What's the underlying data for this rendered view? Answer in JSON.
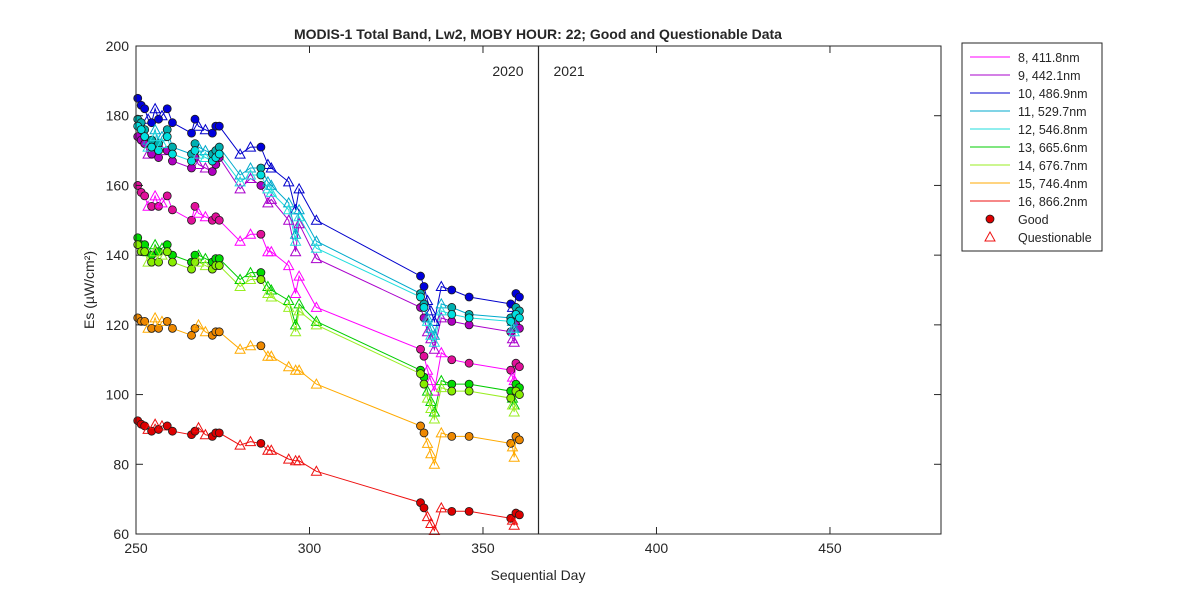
{
  "chart_data": {
    "type": "line",
    "title": "MODIS-1 Total Band,  Lw2, MOBY HOUR: 22;  Good and Questionable Data",
    "xlabel": "Sequential Day",
    "ylabel": "Es (µW/cm²)",
    "xlim": [
      250,
      482
    ],
    "ylim": [
      60,
      200
    ],
    "xticks": [
      250,
      300,
      350,
      400,
      450
    ],
    "yticks": [
      60,
      80,
      100,
      120,
      140,
      160,
      180,
      200
    ],
    "year_divider": 366,
    "year_labels": [
      "2020",
      "2021"
    ],
    "legend": {
      "position": "outside-right",
      "good_label": "Good",
      "questionable_label": "Questionable"
    },
    "x": [
      250.5,
      251.5,
      252.5,
      253.5,
      254.5,
      255.5,
      256.5,
      257.5,
      259,
      260.5,
      266,
      267,
      268,
      270,
      272,
      273,
      274,
      280,
      283,
      286,
      288,
      289,
      294,
      296,
      297,
      302,
      332,
      333,
      334,
      335,
      336,
      338,
      341,
      346,
      358,
      358.5,
      359,
      359.5,
      360.5
    ],
    "good_flags": [
      1,
      1,
      1,
      0,
      1,
      0,
      1,
      0,
      1,
      1,
      1,
      1,
      0,
      0,
      1,
      1,
      1,
      0,
      0,
      1,
      0,
      0,
      0,
      0,
      0,
      0,
      1,
      1,
      0,
      0,
      0,
      0,
      1,
      1,
      1,
      0,
      0,
      1,
      1
    ],
    "series": [
      {
        "name": "8, 411.8nm",
        "color": "#ff00ff",
        "point_color": "#e0109a",
        "values": [
          160,
          158,
          157,
          154,
          154,
          157,
          154,
          155,
          157,
          153,
          150,
          154,
          152,
          151,
          150,
          151,
          150,
          144,
          146,
          146,
          141,
          141,
          137,
          129,
          134,
          125,
          113,
          111,
          107,
          104,
          101,
          112,
          110,
          109,
          107,
          105,
          104,
          109,
          108
        ]
      },
      {
        "name": "9, 442.1nm",
        "color": "#aa00cc",
        "point_color": "#b000c0",
        "values": [
          174,
          173,
          172,
          169,
          169,
          170,
          168,
          170,
          170,
          167,
          165,
          168,
          166,
          165,
          164,
          166,
          168,
          159,
          162,
          160,
          155,
          156,
          150,
          141,
          149,
          139,
          125,
          122,
          118,
          116,
          113,
          122,
          121,
          120,
          118,
          116,
          115,
          120,
          119
        ]
      },
      {
        "name": "10, 486.9nm",
        "color": "#0000cc",
        "point_color": "#0000dd",
        "values": [
          185,
          183,
          182,
          179,
          178,
          182,
          179,
          180,
          182,
          178,
          175,
          179,
          177,
          176,
          175,
          177,
          177,
          169,
          171,
          171,
          166,
          165,
          161,
          153,
          159,
          150,
          134,
          131,
          127,
          124,
          121,
          131,
          130,
          128,
          126,
          125,
          123,
          129,
          128
        ]
      },
      {
        "name": "11, 529.7nm",
        "color": "#00aacc",
        "point_color": "#00b0b0",
        "values": [
          179,
          178,
          176,
          173,
          173,
          176,
          172,
          174,
          176,
          171,
          169,
          172,
          171,
          170,
          169,
          170,
          171,
          163,
          165,
          165,
          161,
          160,
          155,
          146,
          153,
          144,
          129,
          126,
          122,
          119,
          117,
          126,
          125,
          123,
          122,
          121,
          119,
          125,
          124
        ]
      },
      {
        "name": "12, 546.8nm",
        "color": "#22dddd",
        "point_color": "#00e0e0",
        "values": [
          177,
          176,
          174,
          171,
          171,
          174,
          170,
          172,
          174,
          169,
          167,
          170,
          169,
          168,
          167,
          168,
          169,
          161,
          163,
          163,
          159,
          158,
          153,
          144,
          151,
          142,
          128,
          125,
          121,
          117,
          115,
          124,
          123,
          122,
          121,
          119,
          118,
          123,
          122
        ]
      },
      {
        "name": "13, 665.6nm",
        "color": "#00cc00",
        "point_color": "#00dd00",
        "values": [
          145,
          143,
          143,
          141,
          140,
          143,
          141,
          142,
          143,
          140,
          138,
          140,
          140,
          139,
          138,
          139,
          139,
          133,
          135,
          135,
          131,
          130,
          127,
          120,
          126,
          121,
          107,
          105,
          101,
          98,
          95,
          104,
          103,
          103,
          101,
          99,
          97,
          103,
          102
        ]
      },
      {
        "name": "14, 676.7nm",
        "color": "#99ee22",
        "point_color": "#88ee00",
        "values": [
          143,
          141,
          141,
          138,
          138,
          141,
          138,
          140,
          141,
          138,
          136,
          138,
          138,
          137,
          136,
          137,
          137,
          131,
          133,
          133,
          129,
          128,
          125,
          118,
          124,
          120,
          106,
          103,
          99,
          96,
          93,
          102,
          101,
          101,
          99,
          97,
          95,
          101,
          100
        ]
      },
      {
        "name": "15, 746.4nm",
        "color": "#ffaa00",
        "point_color": "#ee8800",
        "values": [
          122,
          121,
          121,
          119,
          119,
          122,
          119,
          121,
          121,
          119,
          117,
          119,
          120,
          118,
          117,
          118,
          118,
          113,
          114,
          114,
          111,
          111,
          108,
          107,
          107,
          103,
          91,
          89,
          86,
          83,
          80,
          89,
          88,
          88,
          86,
          85,
          82,
          88,
          87
        ]
      },
      {
        "name": "16, 866.2nm",
        "color": "#ee1111",
        "point_color": "#dd0000",
        "values": [
          92.5,
          91.5,
          91,
          90,
          89.5,
          91.5,
          90,
          91,
          91,
          89.5,
          88.5,
          89.5,
          90.5,
          88.5,
          88,
          89,
          89,
          85.5,
          86.5,
          86,
          84,
          84,
          81.5,
          81,
          81,
          78,
          69,
          67.5,
          65,
          63,
          61,
          67.5,
          66.5,
          66.5,
          64.5,
          64,
          62.5,
          66,
          65.5
        ]
      }
    ]
  }
}
